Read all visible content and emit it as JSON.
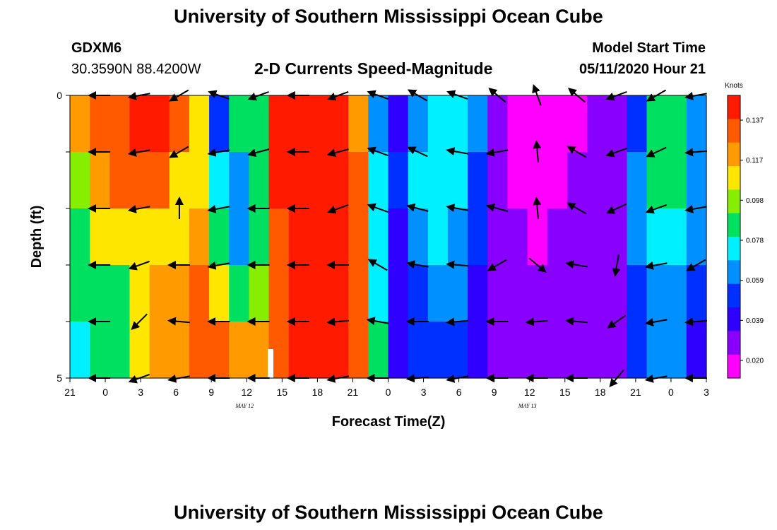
{
  "header": {
    "title_top": "University of Southern Mississippi Ocean Cube",
    "title_bottom": "University of Southern Mississippi Ocean Cube",
    "station_id": "GDXM6",
    "station_coords": "30.3590N 88.4200W",
    "plot_title": "2-D Currents Speed-Magnitude",
    "model_start_label": "Model Start Time",
    "model_start_value": "05/11/2020 Hour 21"
  },
  "chart_data": {
    "type": "heatmap",
    "title": "2-D Currents Speed-Magnitude",
    "xlabel": "Forecast Time(Z)",
    "ylabel": "Depth (ft)",
    "x_ticks": [
      "21",
      "0",
      "3",
      "6",
      "9",
      "12",
      "15",
      "18",
      "21",
      "0",
      "3",
      "6",
      "9",
      "12",
      "15",
      "18",
      "21",
      "0",
      "3"
    ],
    "y_ticks": [
      "0",
      "5"
    ],
    "y_range": [
      0,
      5
    ],
    "day_labels": [
      "MAY 12",
      "MAY 13"
    ],
    "colorbar": {
      "unit": "Knots",
      "ticks": [
        "0.137",
        "0.117",
        "0.098",
        "0.078",
        "0.059",
        "0.039",
        "0.020"
      ],
      "colors": [
        "#ff1a00",
        "#ff5a00",
        "#ff9a00",
        "#ffe600",
        "#88ee00",
        "#00e060",
        "#00f0ff",
        "#0090ff",
        "#0030ff",
        "#3000ff",
        "#8a00ff",
        "#ff00ff"
      ]
    },
    "depth_rows": 5,
    "time_steps": 32,
    "speed_knots": [
      [
        0.115,
        0.125,
        0.13,
        0.137,
        0.137,
        0.125,
        0.1,
        0.05,
        0.08,
        0.08,
        0.137,
        0.137,
        0.137,
        0.137,
        0.12,
        0.06,
        0.04,
        0.065,
        0.07,
        0.075,
        0.06,
        0.03,
        0.02,
        0.02,
        0.025,
        0.025,
        0.035,
        0.03,
        0.055,
        0.085,
        0.088,
        0.06
      ],
      [
        0.09,
        0.12,
        0.125,
        0.125,
        0.125,
        0.11,
        0.11,
        0.07,
        0.06,
        0.08,
        0.137,
        0.137,
        0.137,
        0.137,
        0.125,
        0.07,
        0.05,
        0.07,
        0.075,
        0.07,
        0.055,
        0.03,
        0.025,
        0.022,
        0.025,
        0.028,
        0.03,
        0.035,
        0.06,
        0.08,
        0.08,
        0.06
      ],
      [
        0.085,
        0.1,
        0.105,
        0.1,
        0.1,
        0.105,
        0.12,
        0.08,
        0.06,
        0.08,
        0.13,
        0.137,
        0.137,
        0.137,
        0.125,
        0.07,
        0.045,
        0.065,
        0.07,
        0.065,
        0.05,
        0.03,
        0.028,
        0.025,
        0.028,
        0.03,
        0.032,
        0.035,
        0.06,
        0.075,
        0.07,
        0.06
      ],
      [
        0.085,
        0.08,
        0.085,
        0.105,
        0.115,
        0.117,
        0.125,
        0.11,
        0.085,
        0.09,
        0.125,
        0.137,
        0.137,
        0.137,
        0.125,
        0.07,
        0.04,
        0.055,
        0.06,
        0.06,
        0.045,
        0.03,
        0.03,
        0.028,
        0.03,
        0.03,
        0.03,
        0.035,
        0.055,
        0.065,
        0.06,
        0.05
      ],
      [
        0.07,
        0.08,
        0.088,
        0.105,
        0.117,
        0.12,
        0.125,
        0.125,
        0.117,
        0.12,
        0.125,
        0.137,
        0.137,
        0.137,
        0.125,
        0.08,
        0.04,
        0.05,
        0.055,
        0.05,
        0.04,
        0.028,
        0.028,
        0.03,
        0.03,
        0.03,
        0.03,
        0.035,
        0.05,
        0.06,
        0.06,
        0.04
      ]
    ],
    "arrow_columns": [
      1,
      3,
      5,
      7,
      9,
      11,
      13,
      15,
      17,
      19,
      21,
      23,
      25,
      27,
      29,
      31
    ],
    "arrow_rows_depth_ft": [
      0,
      1,
      2,
      3,
      4,
      5
    ],
    "arrow_directions_deg": [
      [
        180,
        190,
        210,
        160,
        200,
        180,
        200,
        160,
        150,
        160,
        140,
        110,
        140,
        200,
        210,
        190
      ],
      [
        180,
        190,
        210,
        190,
        195,
        180,
        195,
        160,
        155,
        170,
        190,
        95,
        150,
        200,
        205,
        185
      ],
      [
        180,
        190,
        90,
        190,
        180,
        180,
        200,
        160,
        165,
        170,
        165,
        95,
        150,
        205,
        200,
        190
      ],
      [
        180,
        200,
        180,
        190,
        180,
        180,
        180,
        150,
        170,
        175,
        210,
        320,
        170,
        260,
        190,
        210
      ],
      [
        180,
        225,
        175,
        180,
        180,
        180,
        185,
        170,
        180,
        185,
        180,
        185,
        175,
        215,
        190,
        185
      ],
      [
        180,
        200,
        190,
        180,
        180,
        180,
        190,
        180,
        185,
        190,
        180,
        180,
        180,
        230,
        190,
        180
      ]
    ]
  }
}
